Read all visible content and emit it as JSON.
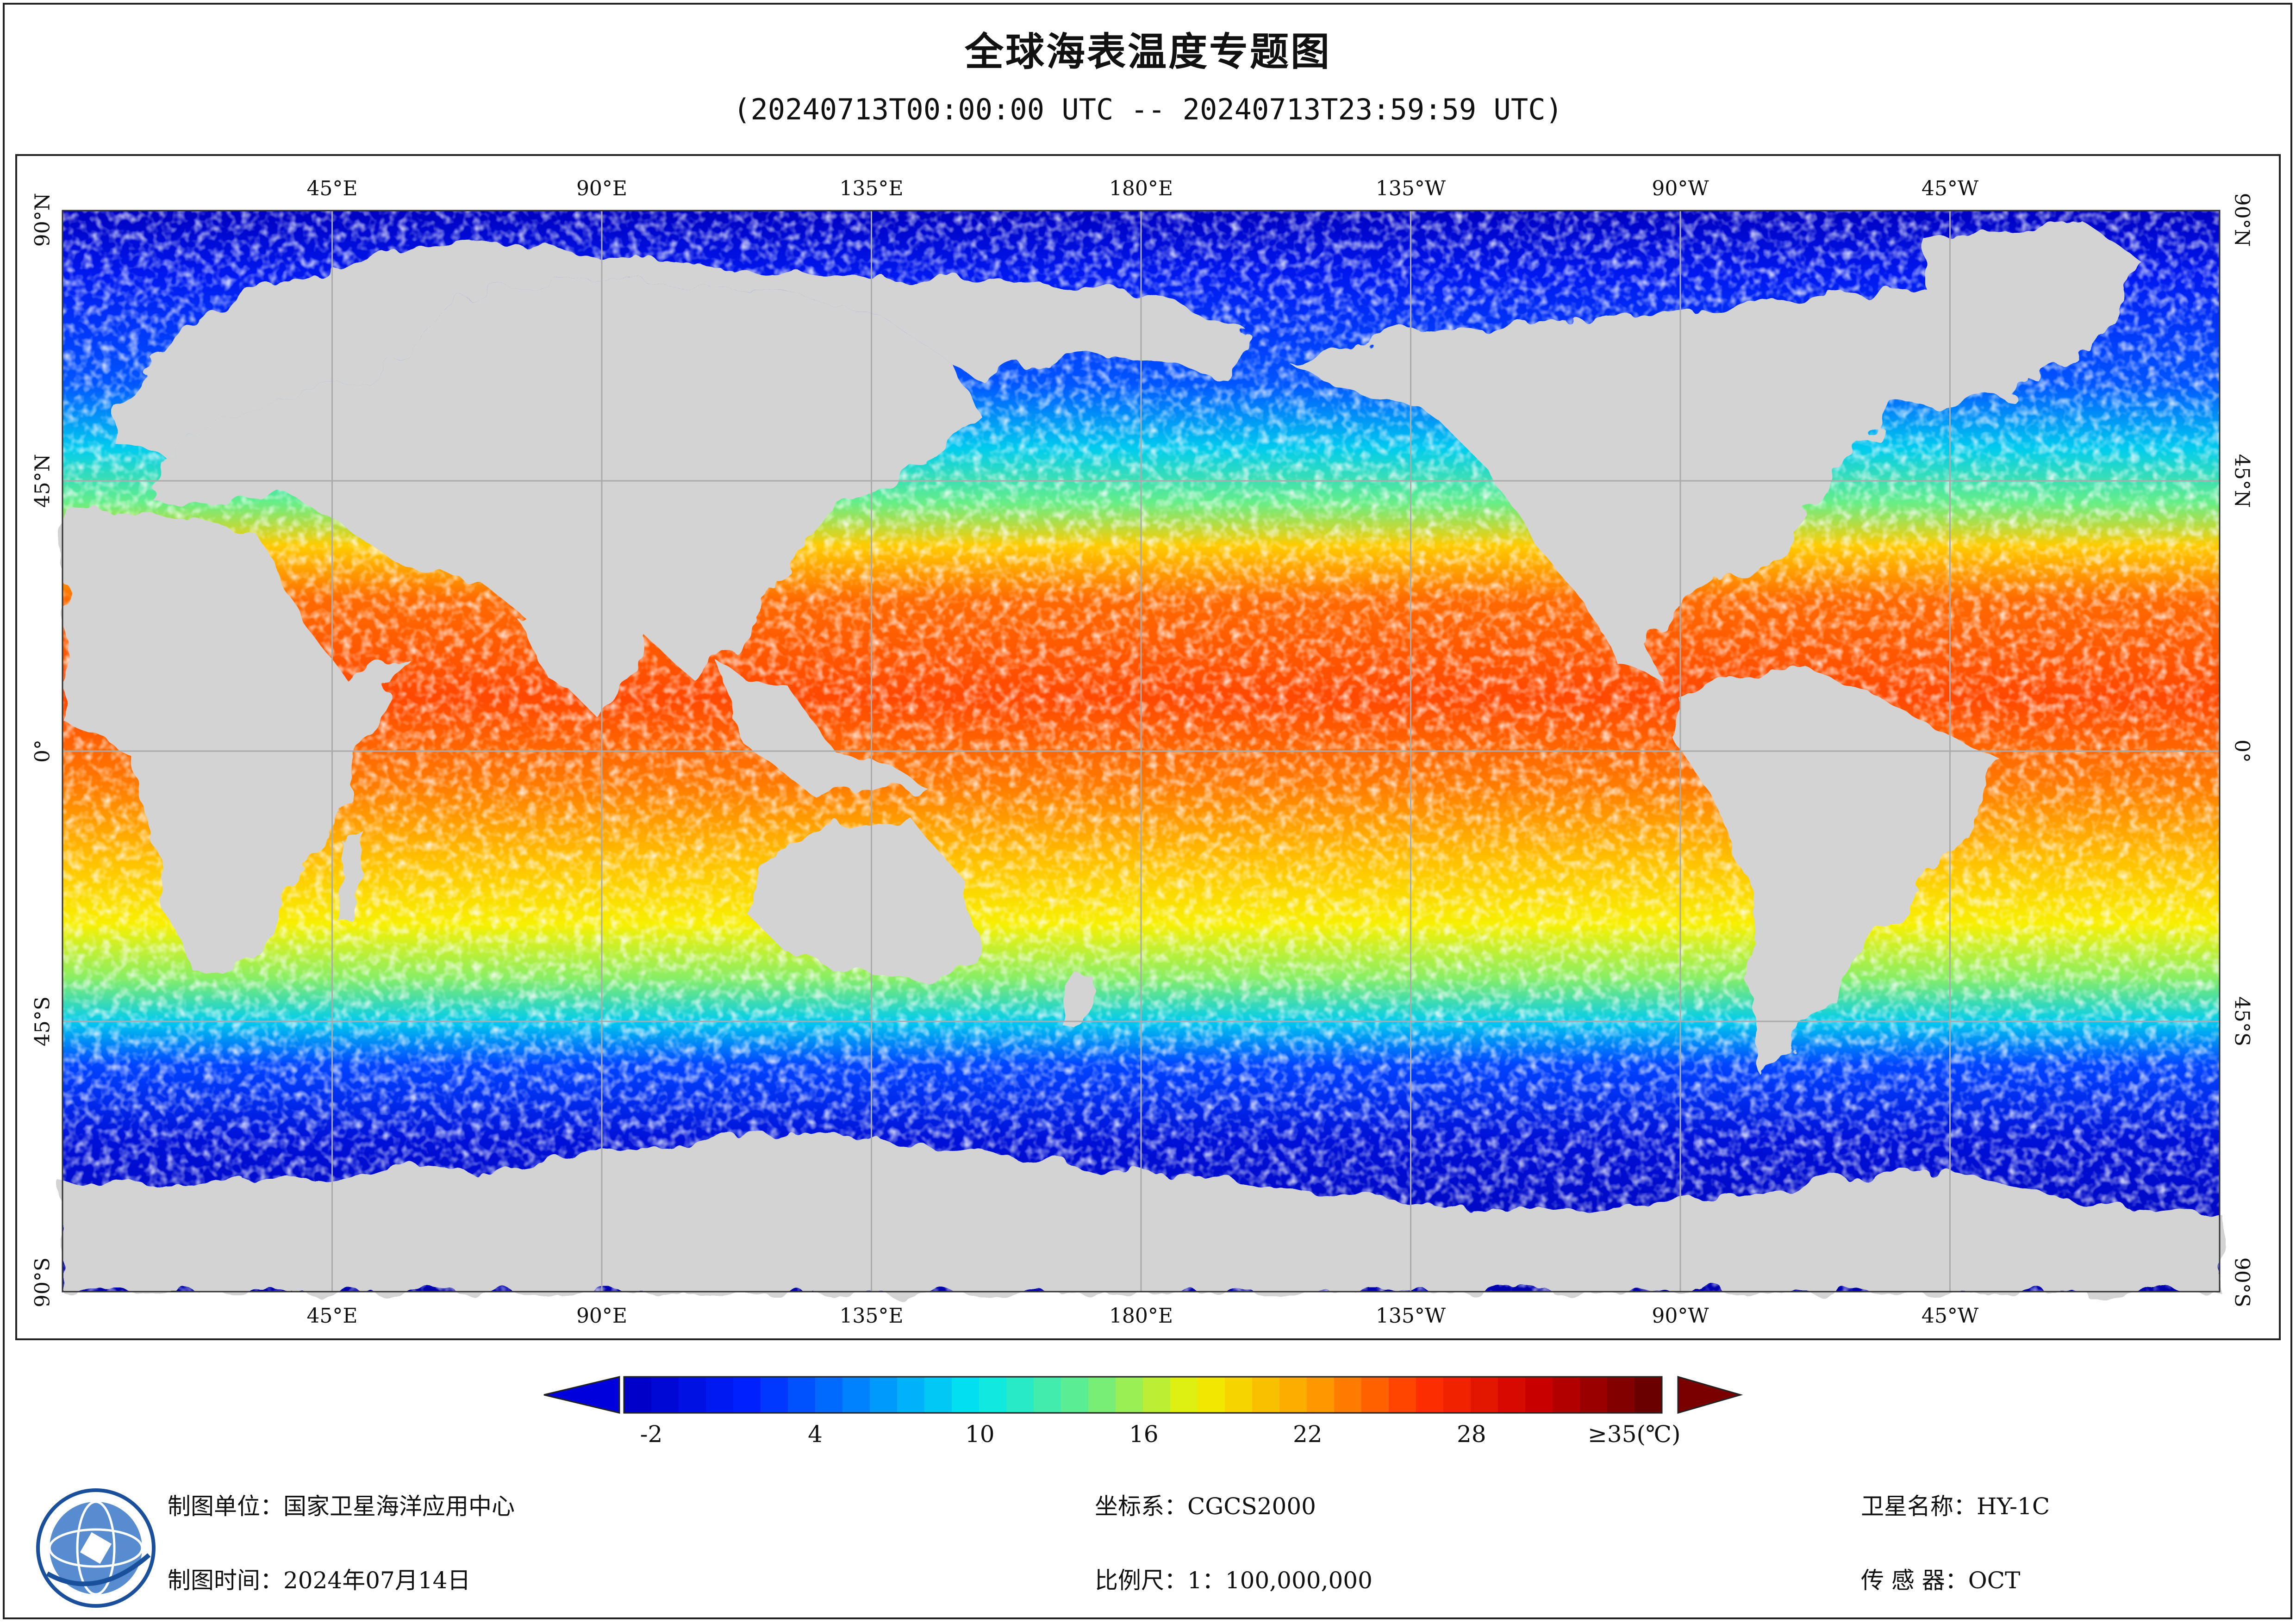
{
  "map": {
    "title": "全球海表温度专题图",
    "subtitle": "(20240713T00:00:00 UTC -- 20240713T23:59:59 UTC)",
    "lon_labels": [
      "45°E",
      "90°E",
      "135°E",
      "180°E",
      "135°W",
      "90°W",
      "45°W"
    ],
    "lat_labels": [
      "90°N",
      "45°N",
      "0°",
      "45°S",
      "90°S"
    ],
    "colors": {
      "land": "#d3d3d4",
      "no_data": "#ffffff",
      "grid": "#aaaaaa"
    }
  },
  "colorbar": {
    "tick_labels": [
      "-2",
      "4",
      "10",
      "16",
      "22",
      "28",
      "≥35(℃)"
    ],
    "tick_values": [
      -2,
      4,
      10,
      16,
      22,
      28,
      35
    ],
    "range": [
      -3,
      35
    ],
    "steps": 38,
    "stops": [
      "#0000c8",
      "#0022ff",
      "#0088ff",
      "#00e8f0",
      "#66ee88",
      "#f0f000",
      "#ffa000",
      "#ff3000",
      "#cc0000",
      "#6a0000"
    ],
    "low_arrow_color": "#0000dd",
    "high_arrow_color": "#7a0000"
  },
  "footer": {
    "producer": "制图单位：国家卫星海洋应用中心",
    "date": "制图时间：2024年07月14日",
    "crs": "坐标系：CGCS2000",
    "scale": "比例尺：1：100,000,000",
    "satellite": "卫星名称：HY-1C",
    "sensor": "传 感 器：OCT"
  },
  "logo": {
    "icon": "nsoas-logo-icon"
  }
}
